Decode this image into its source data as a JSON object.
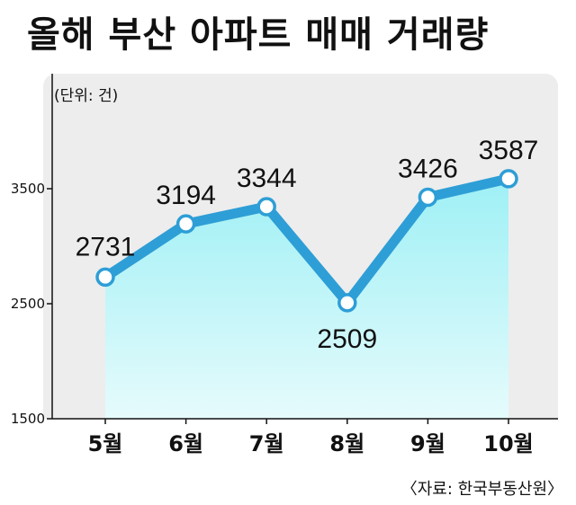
{
  "title": "올해 부산 아파트 매매 거래량",
  "unit_label": "(단위: 건)",
  "source": "〈자료: 한국부동산원〉",
  "chart_data": {
    "type": "area",
    "categories": [
      "5월",
      "6월",
      "7월",
      "8월",
      "9월",
      "10월"
    ],
    "series": [
      {
        "values": [
          2731,
          3194,
          3344,
          2509,
          3426,
          3587
        ]
      }
    ],
    "data_labels": [
      "2731",
      "3194",
      "3344",
      "2509",
      "3426",
      "3587"
    ],
    "yticks": [
      1500,
      2500,
      3500
    ],
    "ytick_labels": [
      "1500",
      "2500",
      "3500"
    ],
    "ylim": [
      1500,
      4500
    ],
    "grid": false,
    "colors": {
      "line": "#2e9ed6",
      "marker_fill": "#ffffff",
      "area_top": "#9ef0f5",
      "area_bottom": "#e6fbfc",
      "panel": "#ededed"
    }
  }
}
